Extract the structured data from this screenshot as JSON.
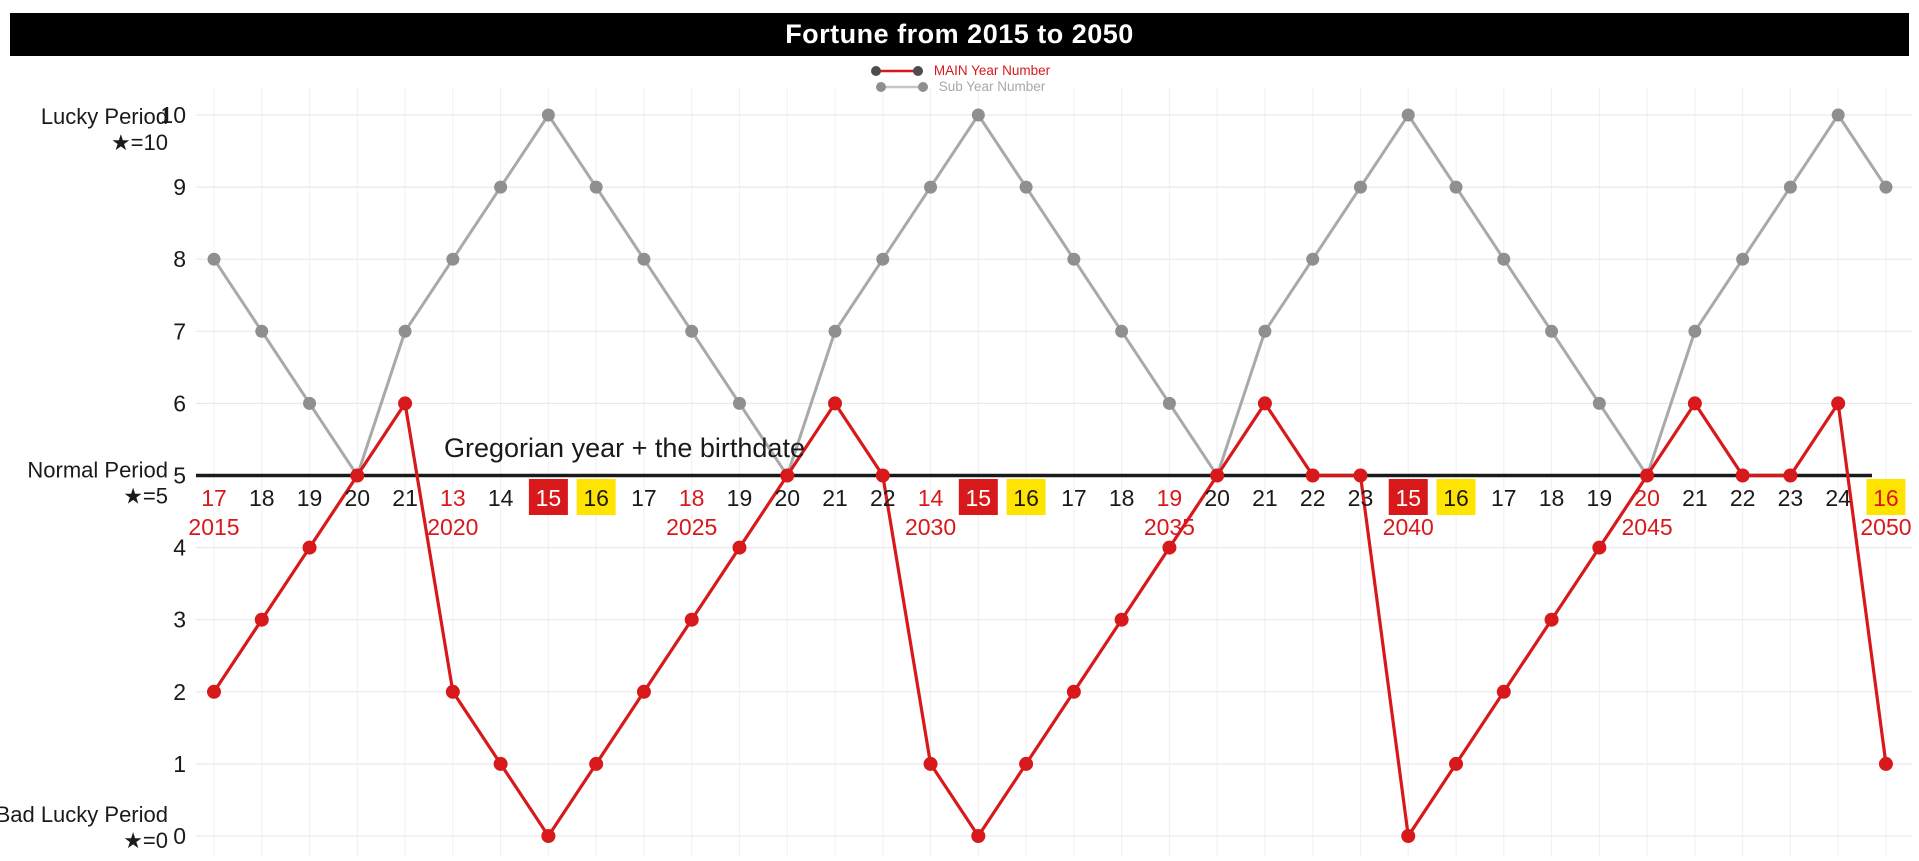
{
  "title": "Fortune from 2015 to 2050",
  "legend": {
    "items": [
      {
        "label": "MAIN Year Number",
        "series": "main",
        "color": "#d7191c"
      },
      {
        "label": "Sub Year Number",
        "series": "sub",
        "color": "#a9a9a9"
      }
    ]
  },
  "axis": {
    "annotation": "Gregorian year + the birthdate",
    "y_ticks": [
      10,
      9,
      8,
      7,
      6,
      5,
      4,
      3,
      2,
      1,
      0
    ],
    "period_labels": [
      {
        "line1": "Lucky Period",
        "line2": "★=10",
        "at_value": 10
      },
      {
        "line1": "Normal Period",
        "line2": "★=5",
        "at_value": 5
      },
      {
        "line1": "Bad Lucky Period",
        "line2": "★=0",
        "at_value": 0
      }
    ]
  },
  "colors": {
    "main_red": "#d7191c",
    "sub_gray_line": "#a9a9a9",
    "sub_gray_dot": "#8f8f8f",
    "highlight_box_red": "#d7191c",
    "highlight_box_yellow": "#ffe400",
    "title_bar_bg": "#000000",
    "title_text": "#ffffff",
    "axis_line": "#1a1a1a",
    "grid_h": "#e9e9e9",
    "grid_v": "#f2f2f2",
    "tick_black": "#1a1a1a"
  },
  "chart_data": {
    "type": "line",
    "title": "Fortune from 2015 to 2050",
    "xlabel": "Gregorian year + the birthdate",
    "ylabel": "",
    "ylim": [
      0,
      10
    ],
    "baseline_value": 5,
    "grid": true,
    "legend_position": "top-center",
    "x_years": [
      2015,
      2016,
      2017,
      2018,
      2019,
      2020,
      2021,
      2022,
      2023,
      2024,
      2025,
      2026,
      2027,
      2028,
      2029,
      2030,
      2031,
      2032,
      2033,
      2034,
      2035,
      2036,
      2037,
      2038,
      2039,
      2040,
      2041,
      2042,
      2043,
      2044,
      2045,
      2046,
      2047,
      2048,
      2049,
      2050
    ],
    "series": [
      {
        "name": "MAIN Year Number",
        "color": "#d7191c",
        "values": [
          2,
          3,
          4,
          5,
          6,
          2,
          1,
          0,
          1,
          2,
          3,
          4,
          5,
          6,
          5,
          1,
          0,
          1,
          2,
          3,
          4,
          5,
          6,
          5,
          5,
          0,
          1,
          2,
          3,
          4,
          5,
          6,
          5,
          5,
          6,
          1
        ]
      },
      {
        "name": "Sub Year Number",
        "color": "#a9a9a9",
        "values": [
          8,
          7,
          6,
          5,
          7,
          8,
          9,
          10,
          9,
          8,
          7,
          6,
          5,
          7,
          8,
          9,
          10,
          9,
          8,
          7,
          6,
          5,
          7,
          8,
          9,
          10,
          9,
          8,
          7,
          6,
          5,
          7,
          8,
          9,
          10,
          9
        ]
      }
    ],
    "points": [
      {
        "year": 2015,
        "x_label": "17",
        "x_label_style": "red",
        "year_label": "2015",
        "main": 2,
        "sub": 8
      },
      {
        "year": 2016,
        "x_label": "18",
        "x_label_style": "black",
        "year_label": "",
        "main": 3,
        "sub": 7
      },
      {
        "year": 2017,
        "x_label": "19",
        "x_label_style": "black",
        "year_label": "",
        "main": 4,
        "sub": 6
      },
      {
        "year": 2018,
        "x_label": "20",
        "x_label_style": "black",
        "year_label": "",
        "main": 5,
        "sub": 5
      },
      {
        "year": 2019,
        "x_label": "21",
        "x_label_style": "black",
        "year_label": "",
        "main": 6,
        "sub": 7
      },
      {
        "year": 2020,
        "x_label": "13",
        "x_label_style": "red",
        "year_label": "2020",
        "main": 2,
        "sub": 8
      },
      {
        "year": 2021,
        "x_label": "14",
        "x_label_style": "black",
        "year_label": "",
        "main": 1,
        "sub": 9
      },
      {
        "year": 2022,
        "x_label": "15",
        "x_label_style": "red-box",
        "year_label": "",
        "main": 0,
        "sub": 10
      },
      {
        "year": 2023,
        "x_label": "16",
        "x_label_style": "yellow-box",
        "year_label": "",
        "main": 1,
        "sub": 9
      },
      {
        "year": 2024,
        "x_label": "17",
        "x_label_style": "black",
        "year_label": "",
        "main": 2,
        "sub": 8
      },
      {
        "year": 2025,
        "x_label": "18",
        "x_label_style": "red",
        "year_label": "2025",
        "main": 3,
        "sub": 7
      },
      {
        "year": 2026,
        "x_label": "19",
        "x_label_style": "black",
        "year_label": "",
        "main": 4,
        "sub": 6
      },
      {
        "year": 2027,
        "x_label": "20",
        "x_label_style": "black",
        "year_label": "",
        "main": 5,
        "sub": 5
      },
      {
        "year": 2028,
        "x_label": "21",
        "x_label_style": "black",
        "year_label": "",
        "main": 6,
        "sub": 7
      },
      {
        "year": 2029,
        "x_label": "22",
        "x_label_style": "black",
        "year_label": "",
        "main": 5,
        "sub": 8
      },
      {
        "year": 2030,
        "x_label": "14",
        "x_label_style": "red",
        "year_label": "2030",
        "main": 1,
        "sub": 9
      },
      {
        "year": 2031,
        "x_label": "15",
        "x_label_style": "red-box",
        "year_label": "",
        "main": 0,
        "sub": 10
      },
      {
        "year": 2032,
        "x_label": "16",
        "x_label_style": "yellow-box",
        "year_label": "",
        "main": 1,
        "sub": 9
      },
      {
        "year": 2033,
        "x_label": "17",
        "x_label_style": "black",
        "year_label": "",
        "main": 2,
        "sub": 8
      },
      {
        "year": 2034,
        "x_label": "18",
        "x_label_style": "black",
        "year_label": "",
        "main": 3,
        "sub": 7
      },
      {
        "year": 2035,
        "x_label": "19",
        "x_label_style": "red",
        "year_label": "2035",
        "main": 4,
        "sub": 6
      },
      {
        "year": 2036,
        "x_label": "20",
        "x_label_style": "black",
        "year_label": "",
        "main": 5,
        "sub": 5
      },
      {
        "year": 2037,
        "x_label": "21",
        "x_label_style": "black",
        "year_label": "",
        "main": 6,
        "sub": 7
      },
      {
        "year": 2038,
        "x_label": "22",
        "x_label_style": "black",
        "year_label": "",
        "main": 5,
        "sub": 8
      },
      {
        "year": 2039,
        "x_label": "23",
        "x_label_style": "black",
        "year_label": "",
        "main": 5,
        "sub": 9
      },
      {
        "year": 2040,
        "x_label": "15",
        "x_label_style": "red-box",
        "year_label": "2040",
        "main": 0,
        "sub": 10
      },
      {
        "year": 2041,
        "x_label": "16",
        "x_label_style": "yellow-box",
        "year_label": "",
        "main": 1,
        "sub": 9
      },
      {
        "year": 2042,
        "x_label": "17",
        "x_label_style": "black",
        "year_label": "",
        "main": 2,
        "sub": 8
      },
      {
        "year": 2043,
        "x_label": "18",
        "x_label_style": "black",
        "year_label": "",
        "main": 3,
        "sub": 7
      },
      {
        "year": 2044,
        "x_label": "19",
        "x_label_style": "black",
        "year_label": "",
        "main": 4,
        "sub": 6
      },
      {
        "year": 2045,
        "x_label": "20",
        "x_label_style": "red",
        "year_label": "2045",
        "main": 5,
        "sub": 5
      },
      {
        "year": 2046,
        "x_label": "21",
        "x_label_style": "black",
        "year_label": "",
        "main": 6,
        "sub": 7
      },
      {
        "year": 2047,
        "x_label": "22",
        "x_label_style": "black",
        "year_label": "",
        "main": 5,
        "sub": 8
      },
      {
        "year": 2048,
        "x_label": "23",
        "x_label_style": "black",
        "year_label": "",
        "main": 5,
        "sub": 9
      },
      {
        "year": 2049,
        "x_label": "24",
        "x_label_style": "black",
        "year_label": "",
        "main": 6,
        "sub": 10
      },
      {
        "year": 2050,
        "x_label": "16",
        "x_label_style": "yellow-box-red",
        "year_label": "2050",
        "main": 1,
        "sub": 9
      }
    ]
  }
}
